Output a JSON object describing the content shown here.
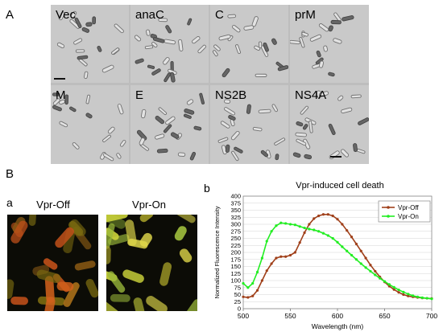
{
  "figure": {
    "panel_a_letter": "A",
    "panel_b_letter": "B",
    "sub_a_letter": "a",
    "sub_b_letter": "b"
  },
  "microscopy": {
    "tiles": [
      {
        "label": "Vec"
      },
      {
        "label": "anaC"
      },
      {
        "label": "C"
      },
      {
        "label": "prM"
      },
      {
        "label": "M"
      },
      {
        "label": "E"
      },
      {
        "label": "NS2B"
      },
      {
        "label": "NS4A"
      }
    ]
  },
  "fluorescence": {
    "left_title": "Vpr-Off",
    "right_title": "Vpr-On"
  },
  "chart_data": {
    "type": "line",
    "title": "Vpr-induced cell death",
    "xlabel": "Wavelength (nm)",
    "ylabel": "Normalized Fluorescence Intensity",
    "xlim": [
      500,
      700
    ],
    "ylim": [
      0,
      400
    ],
    "xticks": [
      500,
      550,
      600,
      650,
      700
    ],
    "yticks": [
      0,
      25,
      50,
      75,
      100,
      125,
      150,
      175,
      200,
      225,
      250,
      275,
      300,
      325,
      350,
      375,
      400
    ],
    "legend_position": "top-right",
    "series": [
      {
        "name": "Vpr-Off",
        "color": "#a0401a",
        "x": [
          500,
          505,
          510,
          515,
          520,
          525,
          530,
          535,
          540,
          545,
          550,
          555,
          560,
          565,
          570,
          575,
          580,
          585,
          590,
          595,
          600,
          605,
          610,
          615,
          620,
          625,
          630,
          635,
          640,
          645,
          650,
          655,
          660,
          665,
          670,
          675,
          680,
          685,
          690,
          695,
          700
        ],
        "y": [
          42,
          40,
          45,
          65,
          100,
          135,
          160,
          180,
          185,
          185,
          190,
          200,
          235,
          270,
          300,
          320,
          330,
          335,
          335,
          330,
          318,
          300,
          278,
          255,
          230,
          205,
          180,
          155,
          133,
          113,
          95,
          80,
          68,
          58,
          50,
          45,
          42,
          40,
          38,
          37,
          36
        ]
      },
      {
        "name": "Vpr-On",
        "color": "#22ee22",
        "x": [
          500,
          505,
          510,
          515,
          520,
          525,
          530,
          535,
          540,
          545,
          550,
          555,
          560,
          565,
          570,
          575,
          580,
          585,
          590,
          595,
          600,
          605,
          610,
          615,
          620,
          625,
          630,
          635,
          640,
          645,
          650,
          655,
          660,
          665,
          670,
          675,
          680,
          685,
          690,
          695,
          700
        ],
        "y": [
          90,
          75,
          90,
          130,
          180,
          240,
          275,
          295,
          305,
          303,
          300,
          298,
          292,
          287,
          283,
          280,
          275,
          268,
          260,
          250,
          236,
          220,
          205,
          190,
          175,
          160,
          146,
          133,
          120,
          108,
          97,
          86,
          76,
          67,
          59,
          52,
          46,
          42,
          39,
          37,
          35
        ]
      }
    ]
  }
}
